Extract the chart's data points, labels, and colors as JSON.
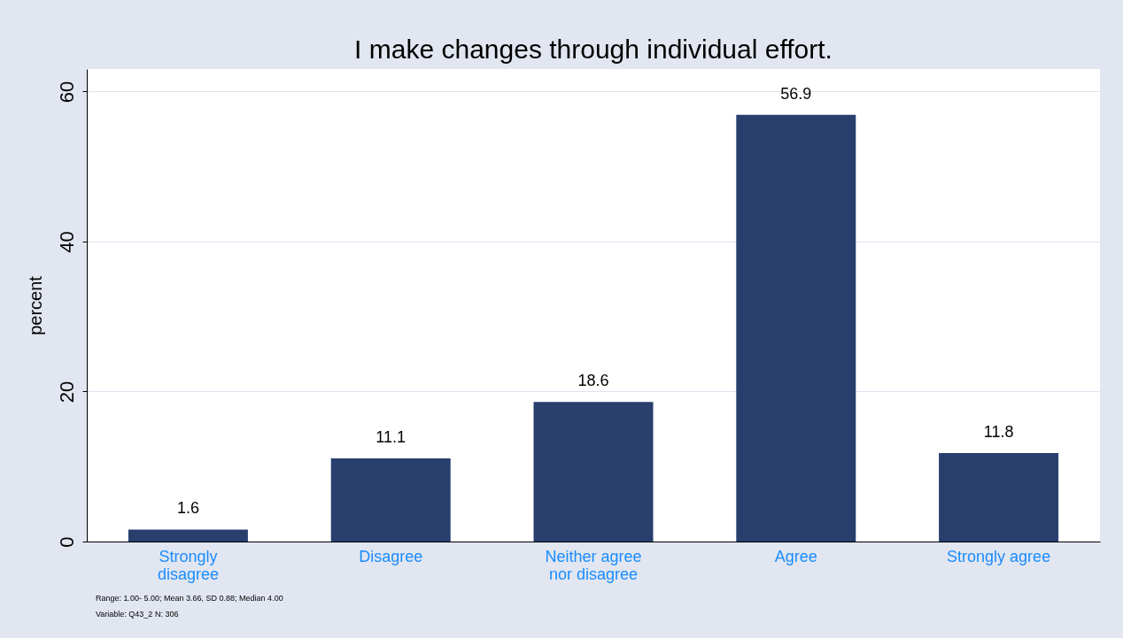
{
  "chart_data": {
    "type": "bar",
    "title": "I make changes through individual effort.",
    "ylabel": "percent",
    "categories": [
      "Strongly disagree",
      "Disagree",
      "Neither agree nor disagree",
      "Agree",
      "Strongly agree"
    ],
    "values": [
      1.6,
      11.1,
      18.6,
      56.9,
      11.8
    ],
    "color": "#283f6e",
    "ylim": [
      0,
      63
    ],
    "yticks": [
      0,
      20,
      40,
      60
    ],
    "grid": "y",
    "data_labels": true,
    "annotations": [
      "Range:      1.00-      5.00;  Mean 3.66, SD 0.88; Median 4.00",
      "Variable: Q43_2 N:         306"
    ]
  }
}
